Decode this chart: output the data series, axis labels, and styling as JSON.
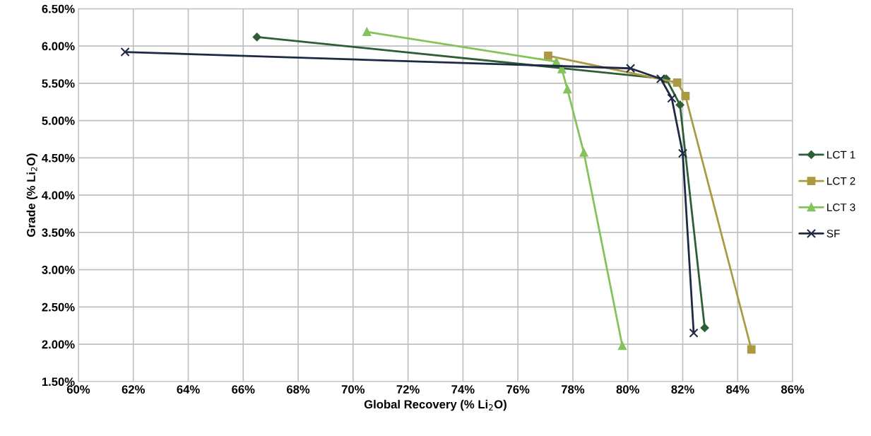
{
  "chart_data": {
    "type": "line",
    "xlabel": "Global Recovery (% Li$_{2}$O)",
    "ylabel": "Grade (% Li$_{2}$O)",
    "xlim": [
      60,
      86
    ],
    "ylim": [
      1.5,
      6.5
    ],
    "xticks": [
      {
        "value": 60,
        "label": "60%"
      },
      {
        "value": 62,
        "label": "62%"
      },
      {
        "value": 64,
        "label": "64%"
      },
      {
        "value": 66,
        "label": "66%"
      },
      {
        "value": 68,
        "label": "68%"
      },
      {
        "value": 70,
        "label": "70%"
      },
      {
        "value": 72,
        "label": "72%"
      },
      {
        "value": 74,
        "label": "74%"
      },
      {
        "value": 76,
        "label": "76%"
      },
      {
        "value": 78,
        "label": "78%"
      },
      {
        "value": 80,
        "label": "80%"
      },
      {
        "value": 82,
        "label": "82%"
      },
      {
        "value": 84,
        "label": "84%"
      },
      {
        "value": 86,
        "label": "86%"
      }
    ],
    "yticks": [
      {
        "value": 1.5,
        "label": "1.50%"
      },
      {
        "value": 2.0,
        "label": "2.00%"
      },
      {
        "value": 2.5,
        "label": "2.50%"
      },
      {
        "value": 3.0,
        "label": "3.00%"
      },
      {
        "value": 3.5,
        "label": "3.50%"
      },
      {
        "value": 4.0,
        "label": "4.00%"
      },
      {
        "value": 4.5,
        "label": "4.50%"
      },
      {
        "value": 5.0,
        "label": "5.00%"
      },
      {
        "value": 5.5,
        "label": "5.50%"
      },
      {
        "value": 6.0,
        "label": "6.00%"
      },
      {
        "value": 6.5,
        "label": "6.50%"
      }
    ],
    "grid": true,
    "legend": "right",
    "line_style": "solid",
    "series": [
      {
        "name": "LCT 1",
        "color": "#2e5e34",
        "marker": "diamond",
        "x": [
          66.5,
          81.4,
          81.9,
          82.8
        ],
        "values": [
          6.12,
          5.56,
          5.21,
          2.22
        ]
      },
      {
        "name": "LCT 2",
        "color": "#ab9a42",
        "marker": "square",
        "x": [
          77.1,
          81.8,
          82.1,
          84.5
        ],
        "values": [
          5.87,
          5.51,
          5.33,
          1.93
        ]
      },
      {
        "name": "LCT 3",
        "color": "#84c35c",
        "marker": "triangle",
        "x": [
          70.5,
          77.4,
          77.6,
          77.8,
          78.4,
          79.8
        ],
        "values": [
          6.19,
          5.79,
          5.69,
          5.42,
          4.57,
          1.98
        ]
      },
      {
        "name": "SF",
        "color": "#1e2a44",
        "marker": "cross",
        "x": [
          61.7,
          80.1,
          81.2,
          81.6,
          82.0,
          82.4
        ],
        "values": [
          5.92,
          5.7,
          5.56,
          5.3,
          4.56,
          2.15
        ]
      }
    ]
  }
}
